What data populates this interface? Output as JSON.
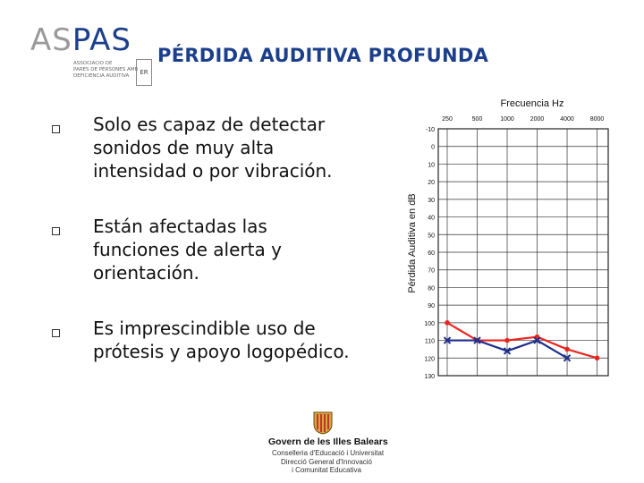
{
  "logo": {
    "word_left": "AS",
    "word_right": "PAS",
    "sub_lines": [
      "Associació de",
      "pares de persones amb",
      "deficiència auditiva"
    ],
    "badge": "ER"
  },
  "title": "PÉRDIDA AUDITIVA PROFUNDA",
  "bullets": [
    {
      "text": "Solo es capaz de detectar\nsonidos de muy alta\nintensidad o por vibración."
    },
    {
      "text": "Están afectadas las\nfunciones de alerta y\norientación."
    },
    {
      "text": " Es imprescindible uso de\nprótesis y apoyo logopédico."
    }
  ],
  "footer": {
    "government": "Govern de les Illes Balears",
    "lines": [
      "Conselleria d'Educació i Universitat",
      "Direcció General d'Innovació",
      "i Comunitat Educativa"
    ]
  },
  "chart_data": {
    "type": "line",
    "title": "Frecuencia Hz",
    "xlabel": "",
    "ylabel": "Pérdida Auditiva en dB",
    "x": [
      "250",
      "500",
      "1000",
      "2000",
      "4000",
      "8000"
    ],
    "y_ticks": [
      "-10",
      "0",
      "10",
      "20",
      "30",
      "40",
      "50",
      "60",
      "70",
      "80",
      "90",
      "100",
      "110",
      "120",
      "130"
    ],
    "ylim": [
      -10,
      130
    ],
    "y_reversed": true,
    "grid": true,
    "series": [
      {
        "color": "#e8261f",
        "marker": "dot",
        "values": [
          100,
          110,
          110,
          108,
          115,
          120
        ]
      },
      {
        "color": "#1f2f8a",
        "marker": "x",
        "values": [
          110,
          110,
          116,
          110,
          120,
          null
        ]
      }
    ]
  }
}
